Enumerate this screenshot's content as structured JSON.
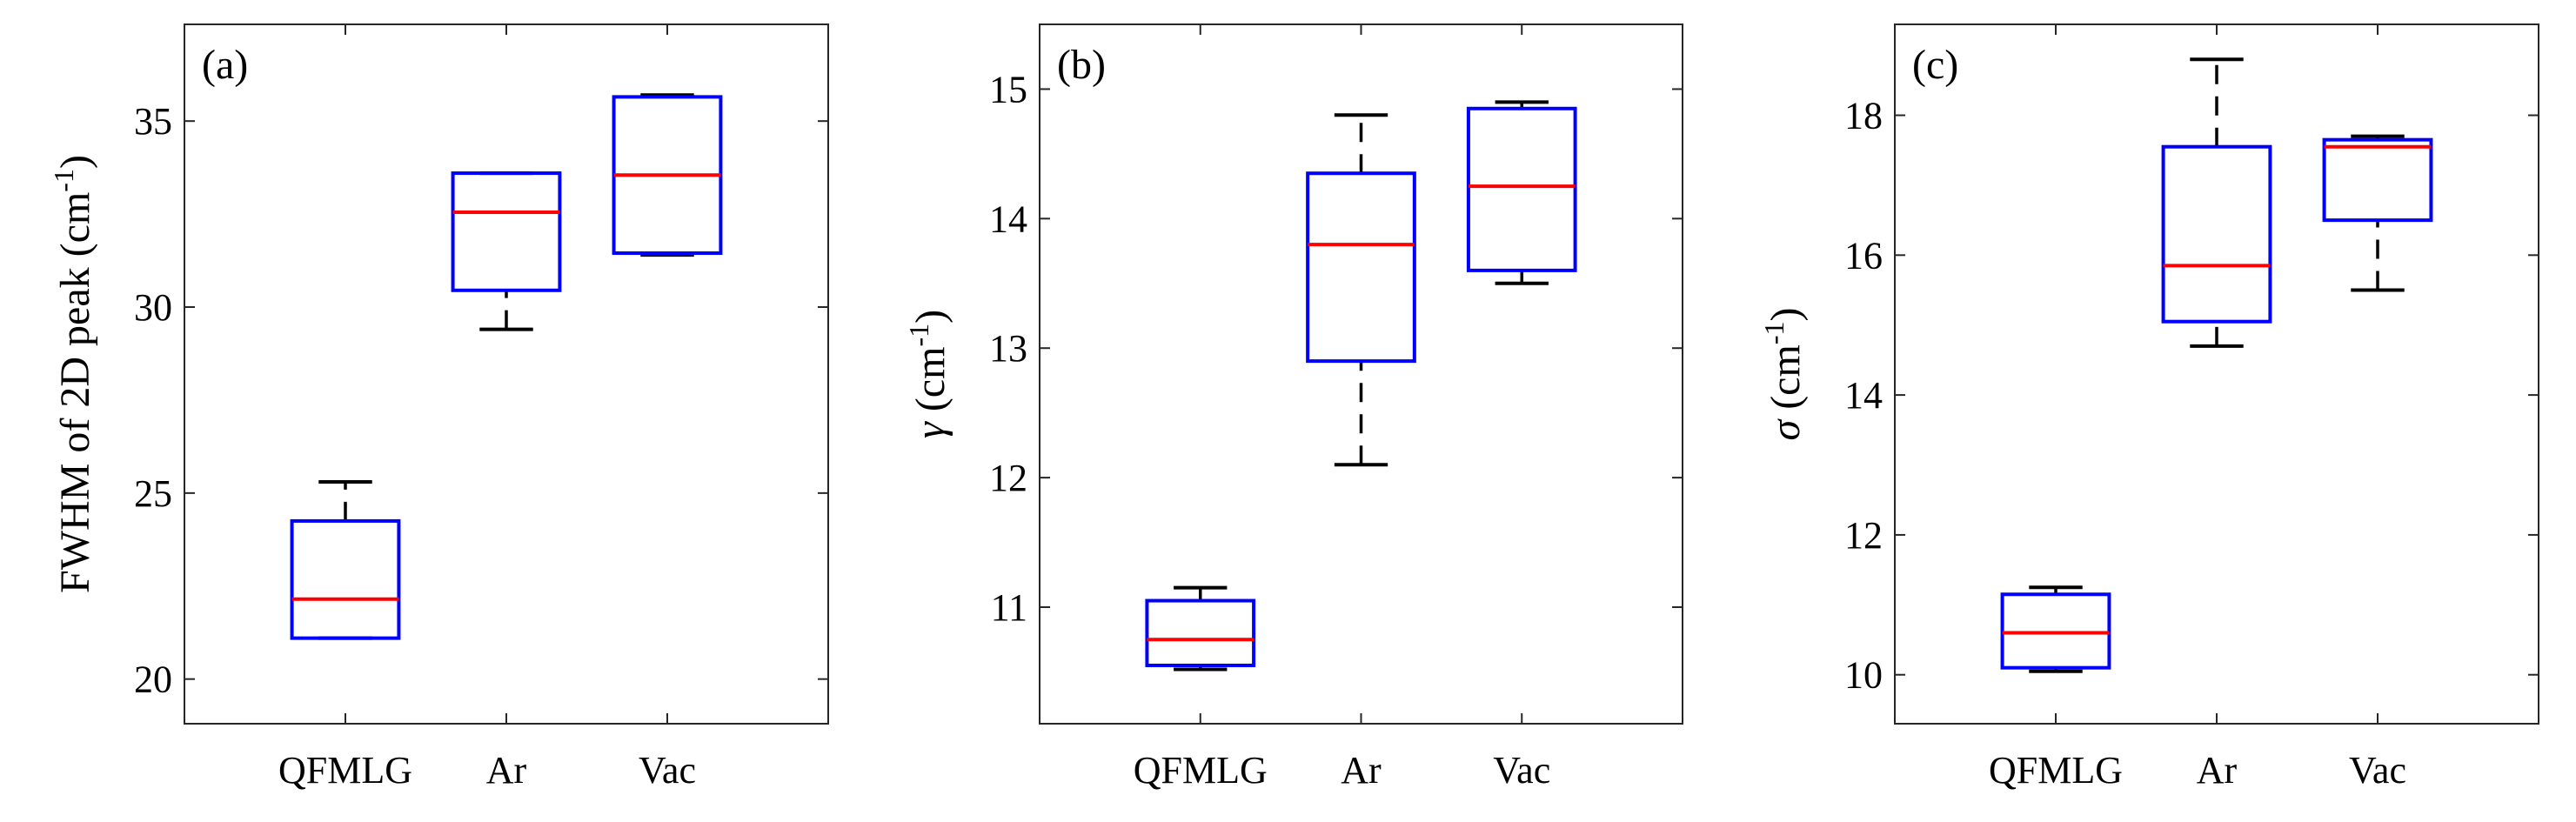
{
  "figure": {
    "panels": 3
  },
  "chart_data": [
    {
      "type": "box",
      "panel_label": "(a)",
      "ylabel_main": "FWHM of 2D peak (cm",
      "ylabel_sup": "-1",
      "ylabel_close": ")",
      "categories": [
        "QFMLG",
        "Ar",
        "Vac"
      ],
      "ylim": [
        18.8,
        37.6
      ],
      "yticks": [
        20,
        25,
        30,
        35
      ],
      "yticklabels": [
        "20",
        "25",
        "30",
        "35"
      ],
      "boxes": [
        {
          "whisker_low": 21.1,
          "q1": 21.1,
          "median": 22.15,
          "q3": 24.25,
          "whisker_high": 25.3
        },
        {
          "whisker_low": 29.4,
          "q1": 30.45,
          "median": 32.55,
          "q3": 33.6,
          "whisker_high": 33.6
        },
        {
          "whisker_low": 31.4,
          "q1": 31.45,
          "median": 33.55,
          "q3": 35.65,
          "whisker_high": 35.7
        }
      ],
      "colors": {
        "box": "#0000ff",
        "median": "#ff0000",
        "whisker": "#000000"
      }
    },
    {
      "type": "box",
      "panel_label": "(b)",
      "ylabel_symbol": "γ",
      "ylabel_main": " (cm",
      "ylabel_sup": "-1",
      "ylabel_close": ")",
      "categories": [
        "QFMLG",
        "Ar",
        "Vac"
      ],
      "ylim": [
        10.1,
        15.5
      ],
      "yticks": [
        11,
        12,
        13,
        14,
        15
      ],
      "yticklabels": [
        "11",
        "12",
        "13",
        "14",
        "15"
      ],
      "boxes": [
        {
          "whisker_low": 10.52,
          "q1": 10.55,
          "median": 10.75,
          "q3": 11.05,
          "whisker_high": 11.15
        },
        {
          "whisker_low": 12.1,
          "q1": 12.9,
          "median": 13.8,
          "q3": 14.35,
          "whisker_high": 14.8
        },
        {
          "whisker_low": 13.5,
          "q1": 13.6,
          "median": 14.25,
          "q3": 14.85,
          "whisker_high": 14.9
        }
      ],
      "colors": {
        "box": "#0000ff",
        "median": "#ff0000",
        "whisker": "#000000"
      }
    },
    {
      "type": "box",
      "panel_label": "(c)",
      "ylabel_symbol": "σ",
      "ylabel_main": " (cm",
      "ylabel_sup": "-1",
      "ylabel_close": ")",
      "categories": [
        "QFMLG",
        "Ar",
        "Vac"
      ],
      "ylim": [
        9.3,
        19.3
      ],
      "yticks": [
        10,
        12,
        14,
        16,
        18
      ],
      "yticklabels": [
        "10",
        "12",
        "14",
        "16",
        "18"
      ],
      "boxes": [
        {
          "whisker_low": 10.05,
          "q1": 10.1,
          "median": 10.6,
          "q3": 11.15,
          "whisker_high": 11.25
        },
        {
          "whisker_low": 14.7,
          "q1": 15.05,
          "median": 15.85,
          "q3": 17.55,
          "whisker_high": 18.8
        },
        {
          "whisker_low": 15.5,
          "q1": 16.5,
          "median": 17.55,
          "q3": 17.65,
          "whisker_high": 17.7
        }
      ],
      "colors": {
        "box": "#0000ff",
        "median": "#ff0000",
        "whisker": "#000000"
      }
    }
  ]
}
